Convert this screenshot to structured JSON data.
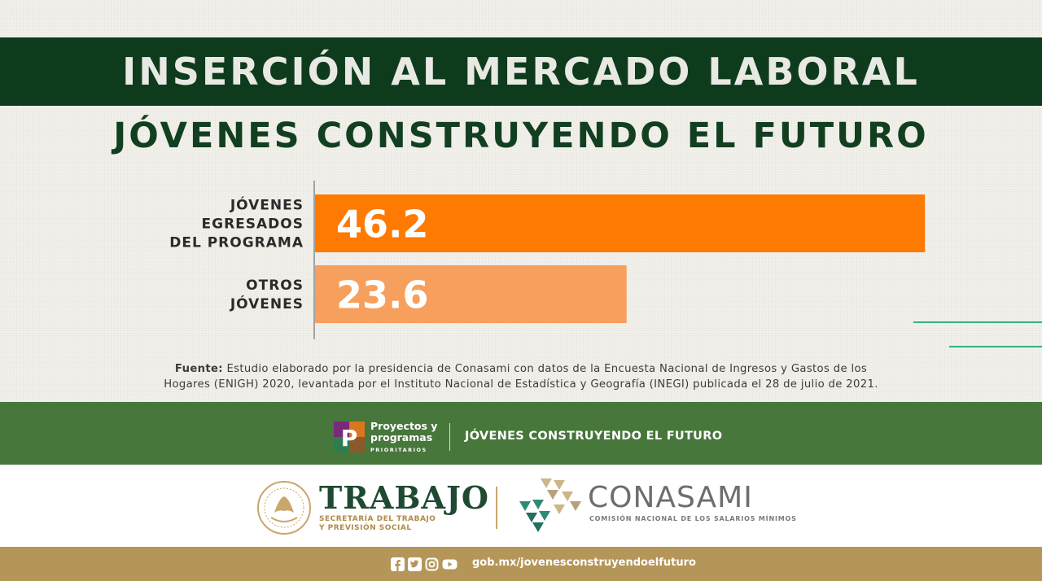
{
  "header": {
    "title": "INSERCIÓN AL MERCADO LABORAL",
    "subtitle": "JÓVENES CONSTRUYENDO EL FUTURO"
  },
  "chart_data": {
    "type": "bar",
    "orientation": "horizontal",
    "categories": [
      "JÓVENES EGRESADOS DEL PROGRAMA",
      "OTROS JÓVENES"
    ],
    "category_lines": [
      [
        "JÓVENES",
        "EGRESADOS",
        "DEL PROGRAMA"
      ],
      [
        "OTROS",
        "JÓVENES"
      ]
    ],
    "values": [
      46.2,
      23.6
    ],
    "value_labels": [
      "46.2",
      "23.6"
    ],
    "colors": [
      "#ff7a00",
      "#f79f5c"
    ],
    "xlim": [
      0,
      48.1
    ],
    "grid": false,
    "legend": "none"
  },
  "source": {
    "label": "Fuente:",
    "line1": "Estudio elaborado por la presidencia de Conasami con datos de la Encuesta Nacional de Ingresos y Gastos de los",
    "line2": "Hogares (ENIGH) 2020, levantada por el Instituto Nacional de Estadística y Geografía (INEGI) publicada el 28 de julio de 2021."
  },
  "program_band": {
    "logo_letter": "P",
    "line1": "Proyectos y",
    "line2": "programas",
    "line3": "PRIORITARIOS",
    "program_name": "JÓVENES CONSTRUYENDO EL FUTURO"
  },
  "logos": {
    "trabajo_title": "TRABAJO",
    "trabajo_sub1": "SECRETARÍA DEL TRABAJO",
    "trabajo_sub2": "Y PREVISIÓN SOCIAL",
    "conasami_title": "CONASAMI",
    "conasami_sub": "COMISIÓN NACIONAL DE LOS SALARIOS MÍNIMOS"
  },
  "footer": {
    "social_icons": [
      "facebook-icon",
      "twitter-icon",
      "instagram-icon",
      "youtube-icon"
    ],
    "url": "gob.mx/jovenesconstruyendoelfuturo"
  },
  "colors": {
    "dark_green": "#0e3b1c",
    "band_green": "#47773b",
    "gold": "#b59659",
    "accent_teal": "#35b384"
  }
}
